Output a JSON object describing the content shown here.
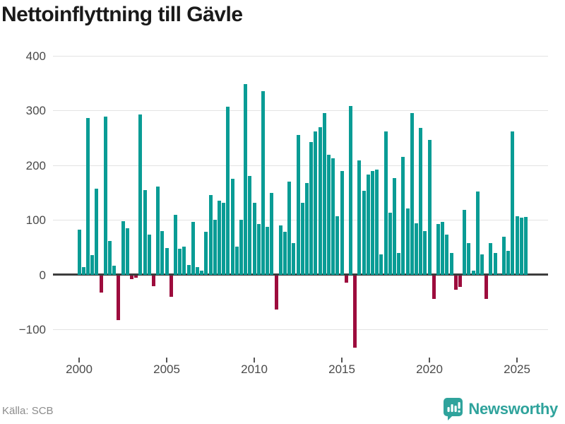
{
  "title": "Nettoinflyttning till Gävle",
  "source": "Källa: SCB",
  "brand": {
    "name": "Newsworthy"
  },
  "colors": {
    "positive_bar": "#099c95",
    "negative_bar": "#9d0c3d",
    "grid": "#e3e3e3",
    "zero_line": "#3d3d3d",
    "title_text": "#1a1a1a",
    "axis_text": "#4a4a4a",
    "source_text": "#8c8c8c",
    "brand_teal": "#2fa39c"
  },
  "chart_data": {
    "type": "bar",
    "title": "Nettoinflyttning till Gävle",
    "xlabel": "",
    "ylabel": "",
    "x_start_year": 2000,
    "x_start_quarter": 1,
    "x_frequency": "quarterly",
    "x_tick_years": [
      2000,
      2005,
      2010,
      2015,
      2020,
      2025
    ],
    "x_tick_labels": [
      "2000",
      "2005",
      "2010",
      "2015",
      "2020",
      "2025"
    ],
    "y_gridlines": [
      400,
      300,
      200,
      100,
      0,
      -100
    ],
    "y_tick_labels": [
      "400",
      "300",
      "200",
      "100",
      "0",
      "−100"
    ],
    "ylim": [
      -170,
      430
    ],
    "grid": "horizontal",
    "legend": "none",
    "values": [
      82,
      14,
      286,
      36,
      157,
      -32,
      289,
      62,
      16,
      -83,
      98,
      85,
      -8,
      -5,
      293,
      155,
      73,
      -21,
      161,
      80,
      49,
      -40,
      110,
      47,
      51,
      18,
      97,
      14,
      8,
      78,
      145,
      100,
      135,
      131,
      307,
      175,
      52,
      100,
      348,
      180,
      131,
      93,
      335,
      87,
      150,
      -64,
      90,
      79,
      170,
      58,
      255,
      132,
      167,
      242,
      262,
      270,
      295,
      219,
      213,
      107,
      189,
      -15,
      308,
      -133,
      209,
      153,
      183,
      190,
      192,
      37,
      262,
      114,
      176,
      40,
      215,
      121,
      296,
      94,
      268,
      80,
      246,
      -44,
      93,
      96,
      73,
      40,
      -27,
      -22,
      118,
      58,
      8,
      152,
      37,
      -44,
      58,
      40,
      1,
      70,
      43,
      262,
      107,
      104,
      106
    ]
  }
}
